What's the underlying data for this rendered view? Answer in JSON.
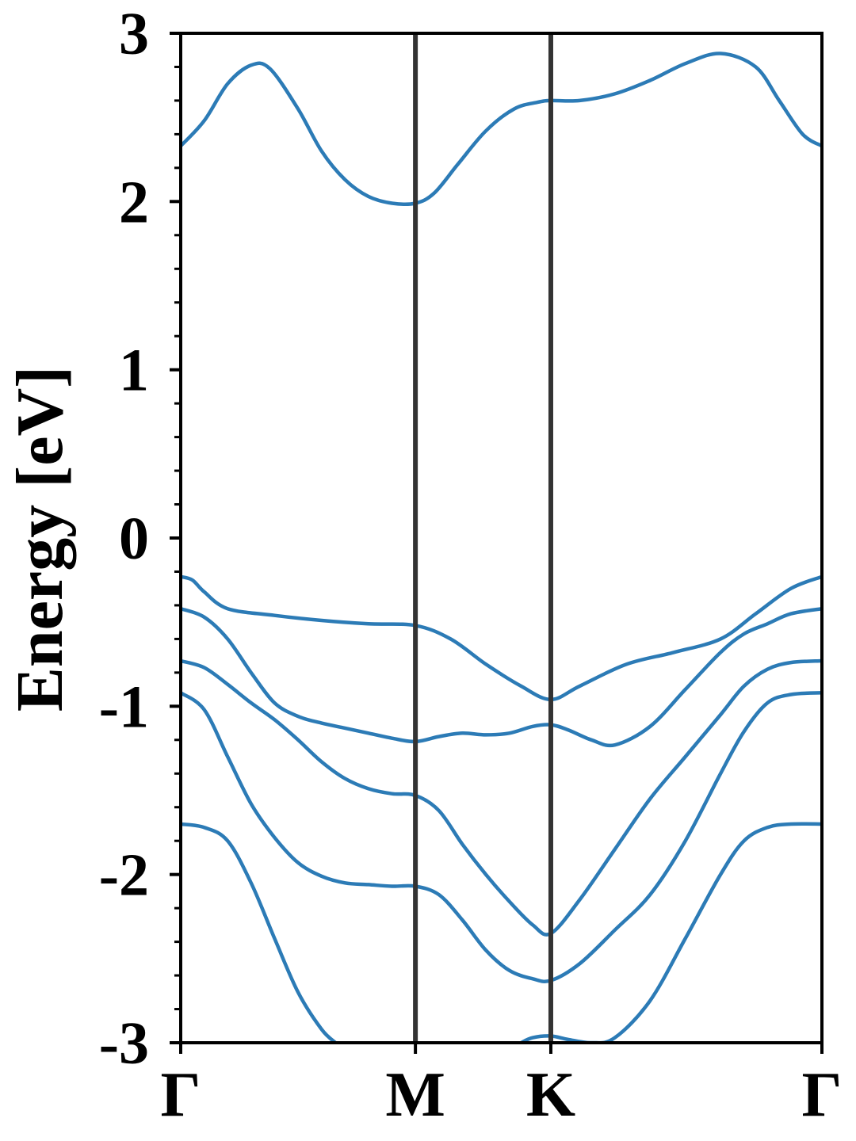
{
  "chart_data": {
    "type": "line",
    "title": "",
    "xlabel": "",
    "ylabel": "Energy [eV]",
    "ylim": [
      -3,
      3
    ],
    "yticks": [
      "-3",
      "-2",
      "-1",
      "0",
      "1",
      "2",
      "3"
    ],
    "kpath": [
      {
        "label": "Γ",
        "x": 0.0
      },
      {
        "label": "M",
        "x": 1.0
      },
      {
        "label": "K",
        "x": 1.577
      },
      {
        "label": "Γ",
        "x": 2.732
      }
    ],
    "grid": false,
    "legend": "none",
    "colors": {
      "band": "#2c7bb6",
      "kline": "#333333",
      "axis": "#000000"
    },
    "series": [
      {
        "x": [
          0,
          0.1,
          0.2,
          0.3,
          0.38,
          0.5,
          0.6,
          0.7,
          0.8,
          0.9,
          1.0,
          1.08,
          1.18,
          1.3,
          1.42,
          1.52,
          1.577,
          1.7,
          1.85,
          2.0,
          2.15,
          2.3,
          2.45,
          2.55,
          2.65,
          2.732
        ],
        "y": [
          2.33,
          2.48,
          2.7,
          2.81,
          2.79,
          2.55,
          2.3,
          2.13,
          2.03,
          1.99,
          1.99,
          2.05,
          2.22,
          2.42,
          2.55,
          2.59,
          2.6,
          2.6,
          2.64,
          2.72,
          2.82,
          2.88,
          2.8,
          2.6,
          2.4,
          2.33
        ]
      },
      {
        "x": [
          0,
          0.05,
          0.1,
          0.2,
          0.4,
          0.6,
          0.8,
          1.0,
          1.15,
          1.3,
          1.45,
          1.577,
          1.7,
          1.9,
          2.1,
          2.3,
          2.45,
          2.6,
          2.732
        ],
        "y": [
          -0.23,
          -0.25,
          -0.32,
          -0.42,
          -0.46,
          -0.49,
          -0.51,
          -0.52,
          -0.6,
          -0.75,
          -0.88,
          -0.96,
          -0.88,
          -0.75,
          -0.68,
          -0.6,
          -0.45,
          -0.3,
          -0.23
        ]
      },
      {
        "x": [
          0,
          0.1,
          0.2,
          0.3,
          0.4,
          0.5,
          0.6,
          0.7,
          0.8,
          0.9,
          1.0,
          1.1,
          1.2,
          1.3,
          1.4,
          1.5,
          1.577,
          1.65,
          1.75,
          1.85,
          2.0,
          2.15,
          2.3,
          2.4,
          2.5,
          2.6,
          2.732
        ],
        "y": [
          -0.42,
          -0.47,
          -0.6,
          -0.8,
          -0.98,
          -1.06,
          -1.1,
          -1.13,
          -1.16,
          -1.19,
          -1.21,
          -1.18,
          -1.16,
          -1.17,
          -1.16,
          -1.12,
          -1.11,
          -1.14,
          -1.2,
          -1.23,
          -1.12,
          -0.9,
          -0.68,
          -0.57,
          -0.51,
          -0.45,
          -0.42
        ]
      },
      {
        "x": [
          0,
          0.1,
          0.2,
          0.3,
          0.4,
          0.5,
          0.6,
          0.7,
          0.8,
          0.9,
          1.0,
          1.1,
          1.2,
          1.3,
          1.4,
          1.5,
          1.577,
          1.7,
          1.85,
          2.0,
          2.15,
          2.3,
          2.4,
          2.5,
          2.6,
          2.732
        ],
        "y": [
          -0.73,
          -0.77,
          -0.87,
          -0.98,
          -1.08,
          -1.2,
          -1.33,
          -1.43,
          -1.49,
          -1.52,
          -1.53,
          -1.62,
          -1.82,
          -2.0,
          -2.16,
          -2.3,
          -2.35,
          -2.15,
          -1.85,
          -1.55,
          -1.3,
          -1.05,
          -0.88,
          -0.78,
          -0.74,
          -0.73
        ]
      },
      {
        "x": [
          0,
          0.1,
          0.2,
          0.3,
          0.4,
          0.5,
          0.6,
          0.7,
          0.8,
          0.9,
          1.0,
          1.1,
          1.2,
          1.3,
          1.4,
          1.5,
          1.577,
          1.7,
          1.85,
          2.0,
          2.15,
          2.3,
          2.4,
          2.5,
          2.6,
          2.732
        ],
        "y": [
          -0.92,
          -1.02,
          -1.3,
          -1.58,
          -1.78,
          -1.93,
          -2.01,
          -2.05,
          -2.06,
          -2.07,
          -2.07,
          -2.12,
          -2.27,
          -2.45,
          -2.57,
          -2.62,
          -2.63,
          -2.53,
          -2.33,
          -2.12,
          -1.8,
          -1.4,
          -1.15,
          -0.98,
          -0.93,
          -0.92
        ]
      },
      {
        "x": [
          0,
          0.1,
          0.2,
          0.3,
          0.4,
          0.5,
          0.6,
          0.66
        ],
        "y": [
          -1.7,
          -1.72,
          -1.8,
          -2.05,
          -2.38,
          -2.7,
          -2.92,
          -3.0
        ]
      },
      {
        "x": [
          1.45,
          1.5,
          1.577,
          1.65,
          1.75,
          1.85,
          2.0,
          2.15,
          2.3,
          2.4,
          2.5,
          2.6,
          2.732
        ],
        "y": [
          -3.0,
          -2.97,
          -2.96,
          -2.98,
          -3.0,
          -2.97,
          -2.75,
          -2.38,
          -2.0,
          -1.8,
          -1.72,
          -1.7,
          -1.7
        ]
      }
    ]
  }
}
